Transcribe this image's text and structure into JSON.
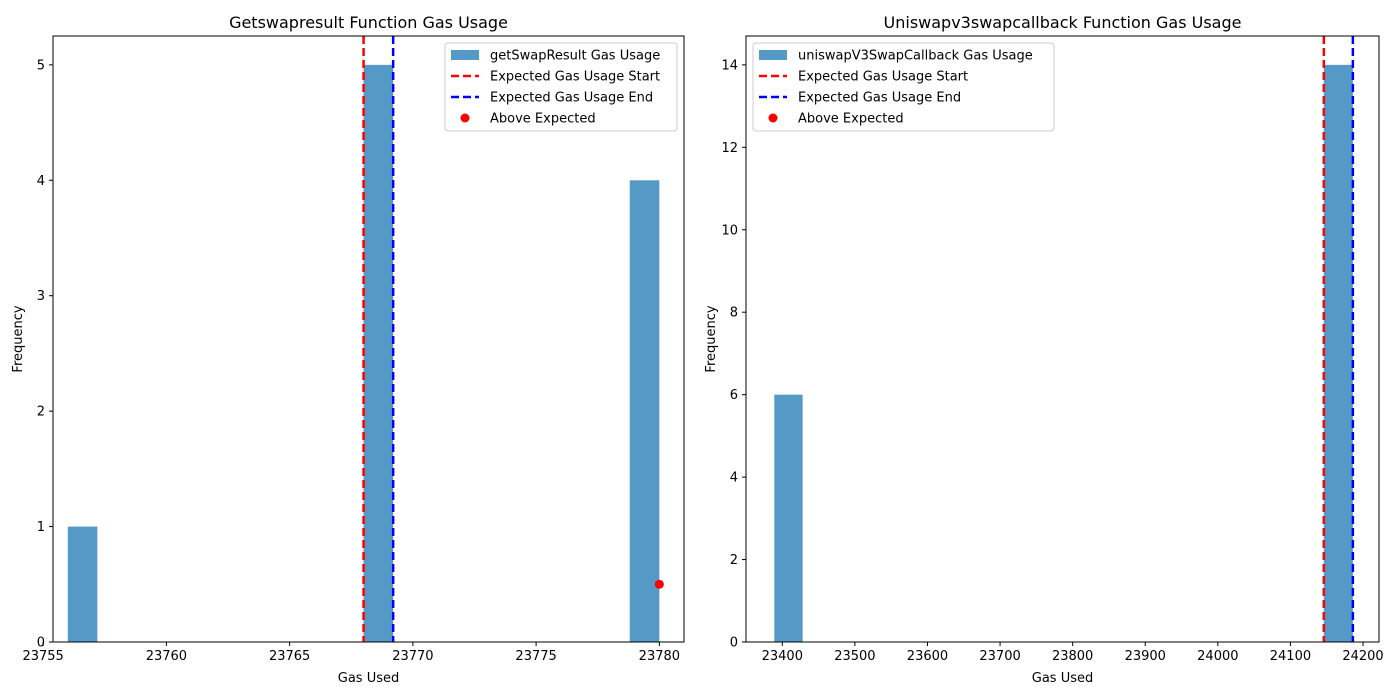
{
  "chart_data": [
    {
      "type": "bar",
      "title": "Getswapresult Function Gas Usage",
      "xlabel": "Gas Used",
      "ylabel": "Frequency",
      "xlim": [
        23755.4,
        23781.0
      ],
      "ylim": [
        0,
        5.25
      ],
      "xticks": [
        23755,
        23760,
        23765,
        23770,
        23775,
        23780
      ],
      "yticks": [
        0,
        1,
        2,
        3,
        4,
        5
      ],
      "bar_color": "#5599c7",
      "bars": [
        {
          "x0": 23756.0,
          "x1": 23757.2,
          "count": 1
        },
        {
          "x0": 23768.0,
          "x1": 23769.2,
          "count": 5
        },
        {
          "x0": 23778.8,
          "x1": 23780.0,
          "count": 4
        }
      ],
      "expected_start": 23768.0,
      "expected_end": 23769.2,
      "above_expected_points": [
        {
          "x": 23780.0,
          "y": 0.5
        }
      ],
      "legend": {
        "placement": "top-right",
        "items": [
          {
            "label": "getSwapResult Gas Usage",
            "kind": "patch",
            "color": "#5599c7"
          },
          {
            "label": "Expected Gas Usage Start",
            "kind": "dashed",
            "color": "#ff0000"
          },
          {
            "label": "Expected Gas Usage End",
            "kind": "dashed",
            "color": "#0000ff"
          },
          {
            "label": "Above Expected",
            "kind": "dot",
            "color": "#ff0000"
          }
        ]
      }
    },
    {
      "type": "bar",
      "title": "Uniswapv3swapcallback Function Gas Usage",
      "xlabel": "Gas Used",
      "ylabel": "Frequency",
      "xlim": [
        23350,
        24222
      ],
      "ylim": [
        0,
        14.7
      ],
      "xticks": [
        23400,
        23500,
        23600,
        23700,
        23800,
        23900,
        24000,
        24100,
        24200
      ],
      "yticks": [
        0,
        2,
        4,
        6,
        8,
        10,
        12,
        14
      ],
      "bar_color": "#5599c7",
      "bars": [
        {
          "x0": 23389,
          "x1": 23428,
          "count": 6
        },
        {
          "x0": 24146,
          "x1": 24186,
          "count": 14
        }
      ],
      "expected_start": 24146,
      "expected_end": 24186,
      "above_expected_points": [],
      "legend": {
        "placement": "top-left",
        "items": [
          {
            "label": "uniswapV3SwapCallback Gas Usage",
            "kind": "patch",
            "color": "#5599c7"
          },
          {
            "label": "Expected Gas Usage Start",
            "kind": "dashed",
            "color": "#ff0000"
          },
          {
            "label": "Expected Gas Usage End",
            "kind": "dashed",
            "color": "#0000ff"
          },
          {
            "label": "Above Expected",
            "kind": "dot",
            "color": "#ff0000"
          }
        ]
      }
    }
  ]
}
